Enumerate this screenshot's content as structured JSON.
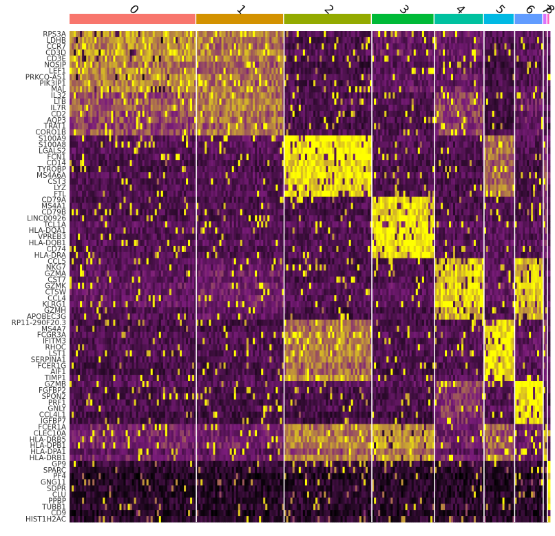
{
  "chart_data": {
    "type": "heatmap",
    "title": "",
    "xlabel": "",
    "ylabel": "",
    "clusters": [
      {
        "label": "0",
        "color": "#F8766D",
        "cells": 182
      },
      {
        "label": "1",
        "color": "#D39200",
        "cells": 126
      },
      {
        "label": "2",
        "color": "#93AA00",
        "cells": 126
      },
      {
        "label": "3",
        "color": "#00BA38",
        "cells": 90
      },
      {
        "label": "4",
        "color": "#00C19F",
        "cells": 71
      },
      {
        "label": "5",
        "color": "#00B9E3",
        "cells": 44
      },
      {
        "label": "6",
        "color": "#619CFF",
        "cells": 41
      },
      {
        "label": "7",
        "color": "#DB72FB",
        "cells": 6
      },
      {
        "label": "8",
        "color": "#FF61C3",
        "cells": 4
      }
    ],
    "genes": [
      {
        "name": "RPS3A",
        "cluster": "0"
      },
      {
        "name": "LDHB",
        "cluster": "0"
      },
      {
        "name": "CCR7",
        "cluster": "0"
      },
      {
        "name": "CD3D",
        "cluster": "0"
      },
      {
        "name": "CD3E",
        "cluster": "0"
      },
      {
        "name": "NOSIP",
        "cluster": "0"
      },
      {
        "name": "LEF1",
        "cluster": "0"
      },
      {
        "name": "PRKCQ-AS1",
        "cluster": "0"
      },
      {
        "name": "PIK3IP1",
        "cluster": "0"
      },
      {
        "name": "MAL",
        "cluster": "0"
      },
      {
        "name": "IL32",
        "cluster": "1"
      },
      {
        "name": "LTB",
        "cluster": "1"
      },
      {
        "name": "IL7R",
        "cluster": "1"
      },
      {
        "name": "CD2",
        "cluster": "1"
      },
      {
        "name": "AQP3",
        "cluster": "1"
      },
      {
        "name": "TRAT1",
        "cluster": "1"
      },
      {
        "name": "CORO1B",
        "cluster": "1"
      },
      {
        "name": "S100A9",
        "cluster": "2"
      },
      {
        "name": "S100A8",
        "cluster": "2"
      },
      {
        "name": "LGALS2",
        "cluster": "2"
      },
      {
        "name": "FCN1",
        "cluster": "2"
      },
      {
        "name": "CD14",
        "cluster": "2"
      },
      {
        "name": "TYROBP",
        "cluster": "2"
      },
      {
        "name": "MS4A6A",
        "cluster": "2"
      },
      {
        "name": "CST3",
        "cluster": "2"
      },
      {
        "name": "LYZ",
        "cluster": "2"
      },
      {
        "name": "FTL",
        "cluster": "2"
      },
      {
        "name": "CD79A",
        "cluster": "3"
      },
      {
        "name": "MS4A1",
        "cluster": "3"
      },
      {
        "name": "CD79B",
        "cluster": "3"
      },
      {
        "name": "LINC00926",
        "cluster": "3"
      },
      {
        "name": "TCL1A",
        "cluster": "3"
      },
      {
        "name": "HLA-DQA1",
        "cluster": "3"
      },
      {
        "name": "VPREB3",
        "cluster": "3"
      },
      {
        "name": "HLA-DQB1",
        "cluster": "3"
      },
      {
        "name": "CD74",
        "cluster": "3"
      },
      {
        "name": "HLA-DRA",
        "cluster": "3"
      },
      {
        "name": "CCL5",
        "cluster": "4"
      },
      {
        "name": "NKG7",
        "cluster": "4"
      },
      {
        "name": "GZMA",
        "cluster": "4"
      },
      {
        "name": "CST7",
        "cluster": "4"
      },
      {
        "name": "GZMK",
        "cluster": "4"
      },
      {
        "name": "CTSW",
        "cluster": "4"
      },
      {
        "name": "CCL4",
        "cluster": "4"
      },
      {
        "name": "KLRG1",
        "cluster": "4"
      },
      {
        "name": "GZMH",
        "cluster": "4"
      },
      {
        "name": "APOBEC3G",
        "cluster": "4"
      },
      {
        "name": "RP11-290F20.3",
        "cluster": "5"
      },
      {
        "name": "MS4A7",
        "cluster": "5"
      },
      {
        "name": "FCGR3A",
        "cluster": "5"
      },
      {
        "name": "IFITM3",
        "cluster": "5"
      },
      {
        "name": "RHOC",
        "cluster": "5"
      },
      {
        "name": "LST1",
        "cluster": "5"
      },
      {
        "name": "SERPINA1",
        "cluster": "5"
      },
      {
        "name": "FCER1G",
        "cluster": "5"
      },
      {
        "name": "AIF1",
        "cluster": "5"
      },
      {
        "name": "TIMP1",
        "cluster": "5"
      },
      {
        "name": "GZMB",
        "cluster": "6"
      },
      {
        "name": "FGFBP2",
        "cluster": "6"
      },
      {
        "name": "SPON2",
        "cluster": "6"
      },
      {
        "name": "PRF1",
        "cluster": "6"
      },
      {
        "name": "GNLY",
        "cluster": "6"
      },
      {
        "name": "CCL4L1",
        "cluster": "6"
      },
      {
        "name": "IGFBP7",
        "cluster": "6"
      },
      {
        "name": "FCER1A",
        "cluster": "7"
      },
      {
        "name": "CLEC10A",
        "cluster": "7"
      },
      {
        "name": "HLA-DRB5",
        "cluster": "7"
      },
      {
        "name": "HLA-DPB1",
        "cluster": "7"
      },
      {
        "name": "HLA-DPA1",
        "cluster": "7"
      },
      {
        "name": "HLA-DRB1",
        "cluster": "7"
      },
      {
        "name": "GP9",
        "cluster": "8"
      },
      {
        "name": "SPARC",
        "cluster": "8"
      },
      {
        "name": "PF4",
        "cluster": "8"
      },
      {
        "name": "GNG11",
        "cluster": "8"
      },
      {
        "name": "SDPR",
        "cluster": "8"
      },
      {
        "name": "CLU",
        "cluster": "8"
      },
      {
        "name": "PPBP",
        "cluster": "8"
      },
      {
        "name": "TUBB1",
        "cluster": "8"
      },
      {
        "name": "CD9",
        "cluster": "8"
      },
      {
        "name": "HIST1H2AC",
        "cluster": "8"
      }
    ],
    "color_scale": {
      "low": "#000000",
      "mid": "#7b1c7b",
      "high": "#ffff00",
      "range": [
        -2.5,
        2.5
      ]
    },
    "expression_levels": {
      "0": {
        "0": 1.2,
        "1": 0.9,
        "2": -1.0,
        "3": -0.5,
        "4": -0.4,
        "5": -1.0,
        "6": -0.8,
        "7": -0.6,
        "8": -0.9
      },
      "1": {
        "0": 0.6,
        "1": 1.0,
        "2": -0.9,
        "3": -0.9,
        "4": 0.4,
        "5": -1.1,
        "6": -0.3,
        "7": -0.8,
        "8": -0.9
      },
      "2": {
        "0": -0.9,
        "1": -0.8,
        "2": 2.2,
        "3": -0.9,
        "4": -1.0,
        "5": 0.8,
        "6": -1.0,
        "7": 0.3,
        "8": -0.6
      },
      "3": {
        "0": -0.8,
        "1": -0.8,
        "2": -0.8,
        "3": 2.3,
        "4": -0.8,
        "5": -0.7,
        "6": -0.8,
        "7": 0.2,
        "8": -0.9
      },
      "4": {
        "0": -0.6,
        "1": -0.3,
        "2": -0.9,
        "3": -0.8,
        "4": 1.9,
        "5": -0.6,
        "6": 1.8,
        "7": -0.9,
        "8": -0.9
      },
      "5": {
        "0": -0.9,
        "1": -0.9,
        "2": 1.0,
        "3": -0.9,
        "4": -0.8,
        "5": 2.2,
        "6": -0.6,
        "7": 0.1,
        "8": -0.8
      },
      "6": {
        "0": -0.9,
        "1": -0.9,
        "2": -0.9,
        "3": -0.9,
        "4": 0.3,
        "5": -0.7,
        "6": 2.4,
        "7": -0.9,
        "8": -0.9
      },
      "7": {
        "0": -0.3,
        "1": -0.4,
        "2": 0.9,
        "3": 1.2,
        "4": -0.4,
        "5": 0.6,
        "6": -0.5,
        "7": 1.5,
        "8": -0.7
      },
      "8": {
        "0": -1.6,
        "1": -1.6,
        "2": -1.5,
        "3": -1.6,
        "4": -1.6,
        "5": -1.6,
        "6": -1.6,
        "7": -1.6,
        "8": 2.5
      }
    }
  }
}
